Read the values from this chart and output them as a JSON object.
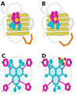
{
  "bg_color": "#ffffff",
  "label_fontsize": 5,
  "label_color": "#111111",
  "protein_color_light": "#e8e0a0",
  "protein_color_dark": "#c8b840",
  "loop_white": "#f0f0f0",
  "loop_gray": "#d0d0d0",
  "orange_loop": "#e87820",
  "cyan_color": "#20b8c8",
  "magenta_color": "#d020a0",
  "pink_color": "#e860b0",
  "yellow_color": "#e8d020",
  "green_dot": "#20b840",
  "red_color": "#e03020"
}
